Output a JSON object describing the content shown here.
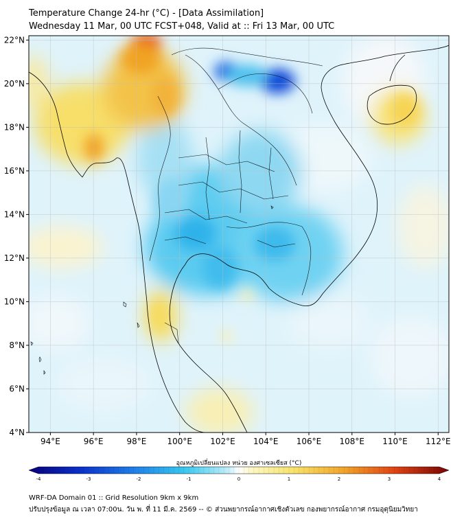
{
  "title": {
    "line1": "Temperature Change 24-hr (°C) - [Data Assimilation]",
    "line2": "Wednesday 11 Mar, 00 UTC FCST+048, Valid at :: Fri 13 Mar, 00 UTC"
  },
  "axes": {
    "lon_labels": [
      "94°E",
      "96°E",
      "98°E",
      "100°E",
      "102°E",
      "104°E",
      "106°E",
      "108°E",
      "110°E",
      "112°E"
    ],
    "lat_labels": [
      "22°N",
      "20°N",
      "18°N",
      "16°N",
      "14°N",
      "12°N",
      "10°N",
      "8°N",
      "6°N",
      "4°N"
    ],
    "lon_values": [
      94,
      96,
      98,
      100,
      102,
      104,
      106,
      108,
      110,
      112
    ],
    "lat_values": [
      22,
      20,
      18,
      16,
      14,
      12,
      10,
      8,
      6,
      4
    ],
    "lon_range": [
      93,
      112.5
    ],
    "lat_range": [
      4,
      22.2
    ]
  },
  "colorbar": {
    "label": "อุณหภูมิเปลี่ยนแปลง หน่วย องศาเซลเซียส (°C)",
    "ticks": [
      "-4",
      "-3",
      "-2",
      "-1",
      "0",
      "1",
      "2",
      "3",
      "4"
    ],
    "range": [
      -4,
      4
    ]
  },
  "footer": {
    "line1": "WRF-DA Domain 01 :: Grid Resolution 9km x 9km",
    "line2": "ปรับปรุงข้อมูล ณ เวลา 07:00น. วัน พ. ที่ 11 มี.ค. 2569 -- © ส่วนพยากรณ์อากาศเชิงตัวเลข กองพยากรณ์อากาศ กรมอุตุนิยมวิทยา"
  },
  "colors": {
    "cold_strong": "#0a3fd0",
    "cold": "#37b8ea",
    "cool": "#8fd8f2",
    "neutral": "#f4f8fb",
    "warm": "#f7e27a",
    "hot": "#f1a324",
    "very_hot": "#e8561c"
  },
  "field_features": [
    {
      "kind": "cold_core",
      "lon": 104.8,
      "lat": 20.2,
      "value": -2.3
    },
    {
      "kind": "cold_core",
      "lon": 102.2,
      "lat": 20.6,
      "value": -1.8
    },
    {
      "kind": "warm_core",
      "lon": 98.4,
      "lat": 22.0,
      "value": 2.2
    },
    {
      "kind": "warm_core",
      "lon": 95.9,
      "lat": 17.0,
      "value": 1.7
    },
    {
      "kind": "warm_core",
      "lon": 110.5,
      "lat": 19.3,
      "value": 1.0
    },
    {
      "kind": "warm_core",
      "lon": 98.8,
      "lat": 9.0,
      "value": 0.8
    },
    {
      "kind": "warm_core",
      "lon": 101.5,
      "lat": 4.7,
      "value": 0.6
    },
    {
      "kind": "cold_core",
      "lon": 101.3,
      "lat": 12.8,
      "value": -1.3
    },
    {
      "kind": "cold_core",
      "lon": 103.3,
      "lat": 11.8,
      "value": -1.2
    }
  ]
}
